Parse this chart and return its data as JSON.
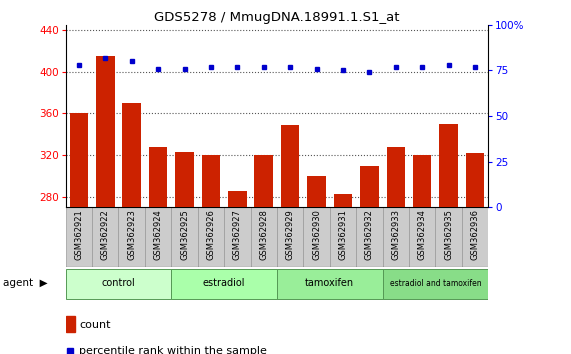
{
  "title": "GDS5278 / MmugDNA.18991.1.S1_at",
  "samples": [
    "GSM362921",
    "GSM362922",
    "GSM362923",
    "GSM362924",
    "GSM362925",
    "GSM362926",
    "GSM362927",
    "GSM362928",
    "GSM362929",
    "GSM362930",
    "GSM362931",
    "GSM362932",
    "GSM362933",
    "GSM362934",
    "GSM362935",
    "GSM362936"
  ],
  "counts": [
    360,
    415,
    370,
    328,
    323,
    320,
    285,
    320,
    349,
    300,
    283,
    309,
    328,
    320,
    350,
    322
  ],
  "percentiles": [
    78,
    82,
    80,
    76,
    76,
    77,
    77,
    77,
    77,
    76,
    75,
    74,
    77,
    77,
    78,
    77
  ],
  "bar_color": "#cc2200",
  "dot_color": "#0000cc",
  "ylim_left": [
    270,
    445
  ],
  "ylim_right": [
    0,
    100
  ],
  "yticks_left": [
    280,
    320,
    360,
    400,
    440
  ],
  "yticks_right": [
    0,
    25,
    50,
    75,
    100
  ],
  "yticklabels_right": [
    "0",
    "25",
    "50",
    "75",
    "100%"
  ],
  "groups": [
    {
      "label": "control",
      "start": 0,
      "end": 4,
      "color": "#ccffcc"
    },
    {
      "label": "estradiol",
      "start": 4,
      "end": 8,
      "color": "#aaffaa"
    },
    {
      "label": "tamoxifen",
      "start": 8,
      "end": 12,
      "color": "#99ee99"
    },
    {
      "label": "estradiol and tamoxifen",
      "start": 12,
      "end": 16,
      "color": "#88dd88"
    }
  ],
  "agent_label": "agent",
  "legend_count_label": "count",
  "legend_percentile_label": "percentile rank within the sample",
  "bar_color_legend": "#cc2200",
  "dot_color_legend": "#0000cc",
  "grid_linestyle": ":",
  "grid_color": "#555555",
  "sample_bg_color": "#cccccc",
  "spine_color": "#000000"
}
